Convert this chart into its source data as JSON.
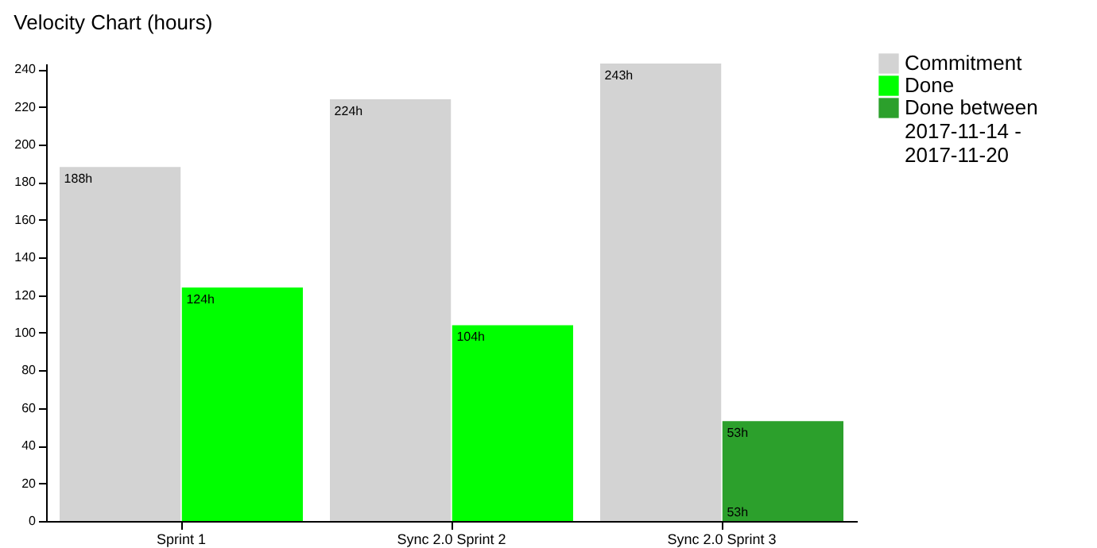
{
  "chart_data": {
    "type": "bar",
    "title": "Velocity Chart (hours)",
    "categories": [
      "Sprint 1",
      "Sync 2.0 Sprint 2",
      "Sync 2.0 Sprint 3"
    ],
    "series": [
      {
        "name": "Commitment",
        "color": "#d3d3d3",
        "values": [
          188,
          224,
          243
        ],
        "value_labels": [
          "188h",
          "224h",
          "243h"
        ]
      },
      {
        "name": "Done",
        "color": "#00ff00",
        "values": [
          124,
          104,
          null
        ],
        "value_labels": [
          "124h",
          "104h",
          null
        ]
      },
      {
        "name": "Done between 2017-11-14 - 2017-11-20",
        "color": "#2ca02c",
        "values": [
          null,
          null,
          53
        ],
        "value_labels": [
          null,
          null,
          "53h"
        ]
      }
    ],
    "annotations": [
      {
        "text": "53h",
        "x": "Sync 2.0 Sprint 3",
        "y": 0
      }
    ],
    "ylim": [
      0,
      243
    ],
    "yticks": [
      0,
      20,
      40,
      60,
      80,
      100,
      120,
      140,
      160,
      180,
      200,
      220,
      240
    ],
    "grid": false,
    "legend": "top right"
  }
}
